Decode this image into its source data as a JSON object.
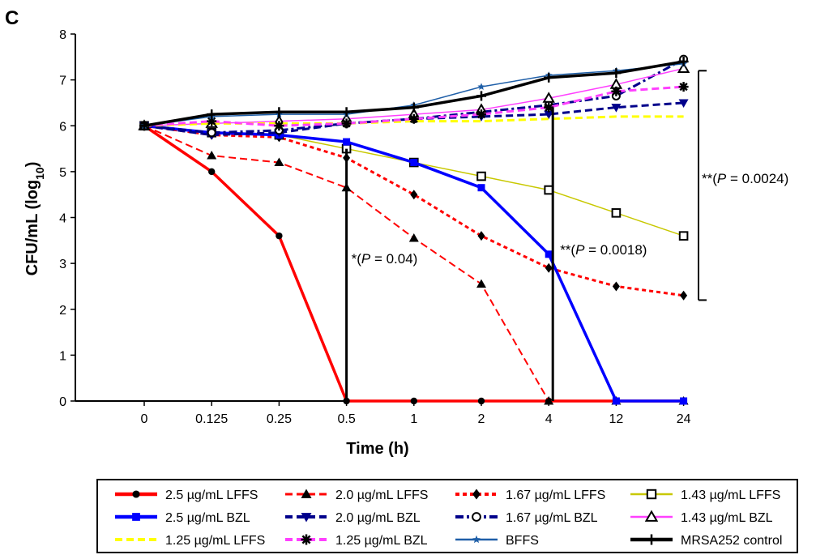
{
  "panel_label": "C",
  "chart_data": {
    "type": "line",
    "xlabel": "Time (h)",
    "ylabel": "CFU/mL (log",
    "ylabel_sub": "10",
    "ylabel_close": ")",
    "categories": [
      "0",
      "0.125",
      "0.25",
      "0.5",
      "1",
      "2",
      "4",
      "12",
      "24"
    ],
    "ylim": [
      0,
      8
    ],
    "yticks": [
      "0",
      "1",
      "2",
      "3",
      "4",
      "5",
      "6",
      "7",
      "8"
    ],
    "grid": false,
    "legend_position": "bottom",
    "series": [
      {
        "name": "2.5 µg/mL LFFS",
        "color": "#ff0000",
        "dash": "solid",
        "marker": "circle",
        "values": [
          6.0,
          5.0,
          3.6,
          0,
          0,
          0,
          0,
          0,
          0
        ]
      },
      {
        "name": "2.0 µg/mL LFFS",
        "color": "#ff0000",
        "dash": "dashed",
        "marker": "triangle",
        "values": [
          6.0,
          5.35,
          5.2,
          4.65,
          3.55,
          2.55,
          0,
          0,
          0
        ]
      },
      {
        "name": "1.67 µg/mL LFFS",
        "color": "#ff0000",
        "dash": "dotted",
        "marker": "diamond",
        "values": [
          6.0,
          5.8,
          5.75,
          5.3,
          4.5,
          3.6,
          2.9,
          2.5,
          2.3
        ]
      },
      {
        "name": "1.43 µg/mL LFFS",
        "color": "#c8c800",
        "dash": "solid",
        "marker": "square-open",
        "values": [
          6.0,
          5.85,
          5.8,
          5.5,
          5.2,
          4.9,
          4.6,
          4.1,
          3.6
        ]
      },
      {
        "name": "2.5 µg/mL BZL",
        "color": "#0000ff",
        "dash": "solid",
        "marker": "square",
        "values": [
          6.0,
          5.85,
          5.8,
          5.65,
          5.2,
          4.65,
          3.2,
          0,
          0
        ]
      },
      {
        "name": "2.0 µg/mL BZL",
        "color": "#00008b",
        "dash": "dashed",
        "marker": "triangle-down",
        "values": [
          6.0,
          5.8,
          5.85,
          6.05,
          6.15,
          6.2,
          6.25,
          6.4,
          6.5
        ]
      },
      {
        "name": "1.67 µg/mL BZL",
        "color": "#00008b",
        "dash": "dashdot",
        "marker": "circle-open",
        "values": [
          6.0,
          5.85,
          5.9,
          6.05,
          6.15,
          6.3,
          6.45,
          6.65,
          7.45
        ]
      },
      {
        "name": "1.43 µg/mL BZL",
        "color": "#ff40ff",
        "dash": "solid",
        "marker": "triangle-open",
        "values": [
          6.0,
          6.05,
          6.1,
          6.15,
          6.25,
          6.35,
          6.6,
          6.9,
          7.25
        ]
      },
      {
        "name": "1.25 µg/mL LFFS",
        "color": "#ffff00",
        "dash": "dashed",
        "marker": "none",
        "values": [
          6.0,
          6.05,
          6.05,
          6.05,
          6.1,
          6.1,
          6.15,
          6.2,
          6.2
        ]
      },
      {
        "name": "1.25 µg/mL BZL",
        "color": "#ff40ff",
        "dash": "dashed",
        "marker": "asterisk",
        "values": [
          6.0,
          6.1,
          6.0,
          6.05,
          6.15,
          6.25,
          6.4,
          6.75,
          6.85
        ]
      },
      {
        "name": "BFFS",
        "color": "#1f5fa8",
        "dash": "solid",
        "marker": "star",
        "values": [
          6.0,
          6.2,
          6.25,
          6.25,
          6.45,
          6.85,
          7.1,
          7.2,
          7.35
        ]
      },
      {
        "name": "MRSA252 control",
        "color": "#000000",
        "dash": "solid",
        "marker": "plus",
        "values": [
          6.0,
          6.25,
          6.3,
          6.3,
          6.4,
          6.65,
          7.05,
          7.15,
          7.4
        ]
      }
    ],
    "annotations": [
      {
        "prefix": "*(",
        "italic": "P",
        "suffix": " = 0.04)",
        "x_category": "0.5",
        "y_from": 0,
        "y_to": 5.5
      },
      {
        "prefix": "**(",
        "italic": "P",
        "suffix": " = 0.0018)",
        "x_category": "4",
        "y_from": 0,
        "y_to": 6.4
      },
      {
        "prefix": "**(",
        "italic": "P",
        "suffix": " = 0.0024)",
        "x_category": "24",
        "y_from": 2.2,
        "y_to": 7.2
      }
    ]
  }
}
